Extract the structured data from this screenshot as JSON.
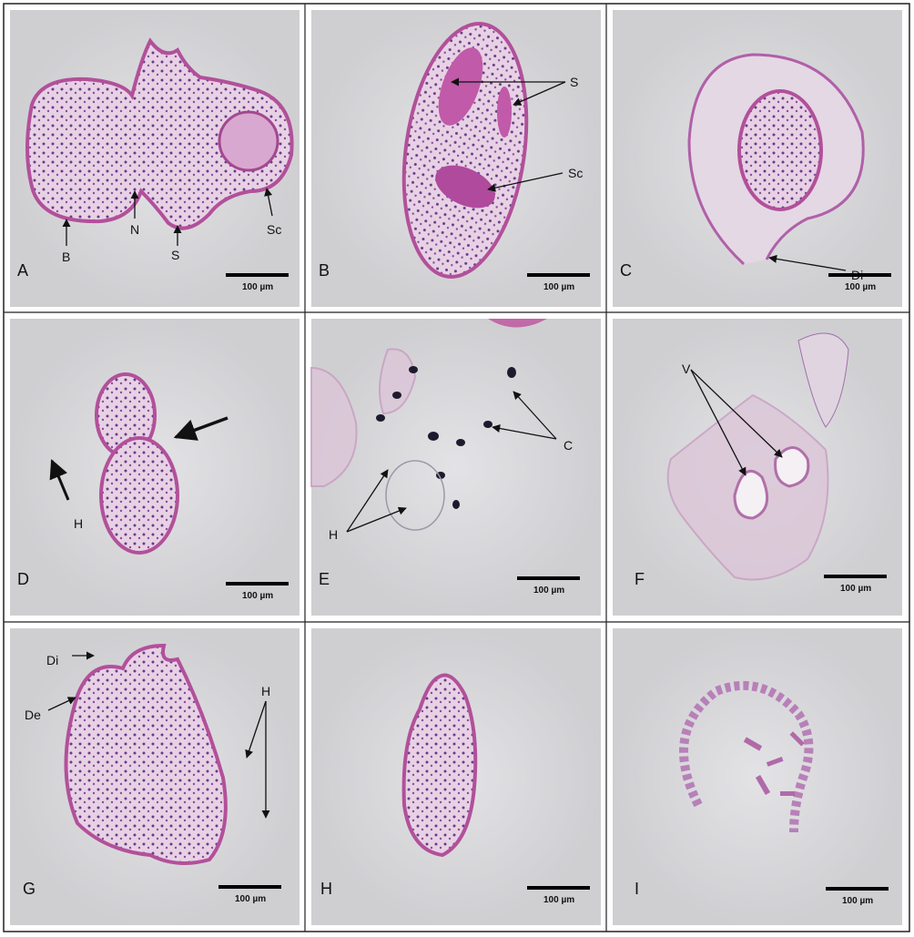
{
  "panels": [
    {
      "letter": "A",
      "scale_bar": "100 µm",
      "annotations": [
        "B",
        "N",
        "S",
        "Sc"
      ]
    },
    {
      "letter": "B",
      "scale_bar": "100 µm",
      "annotations": [
        "S",
        "Sc"
      ]
    },
    {
      "letter": "C",
      "scale_bar": "100 µm",
      "annotations": [
        "Di"
      ]
    },
    {
      "letter": "D",
      "scale_bar": "100 µm",
      "annotations": [
        "H"
      ]
    },
    {
      "letter": "E",
      "scale_bar": "100 µm",
      "annotations": [
        "C",
        "H"
      ]
    },
    {
      "letter": "F",
      "scale_bar": "100 µm",
      "annotations": [
        "V"
      ]
    },
    {
      "letter": "G",
      "scale_bar": "100 µm",
      "annotations": [
        "Di",
        "De",
        "H"
      ]
    },
    {
      "letter": "H",
      "scale_bar": "100 µm",
      "annotations": []
    },
    {
      "letter": "I",
      "scale_bar": "100 µm",
      "annotations": []
    }
  ]
}
